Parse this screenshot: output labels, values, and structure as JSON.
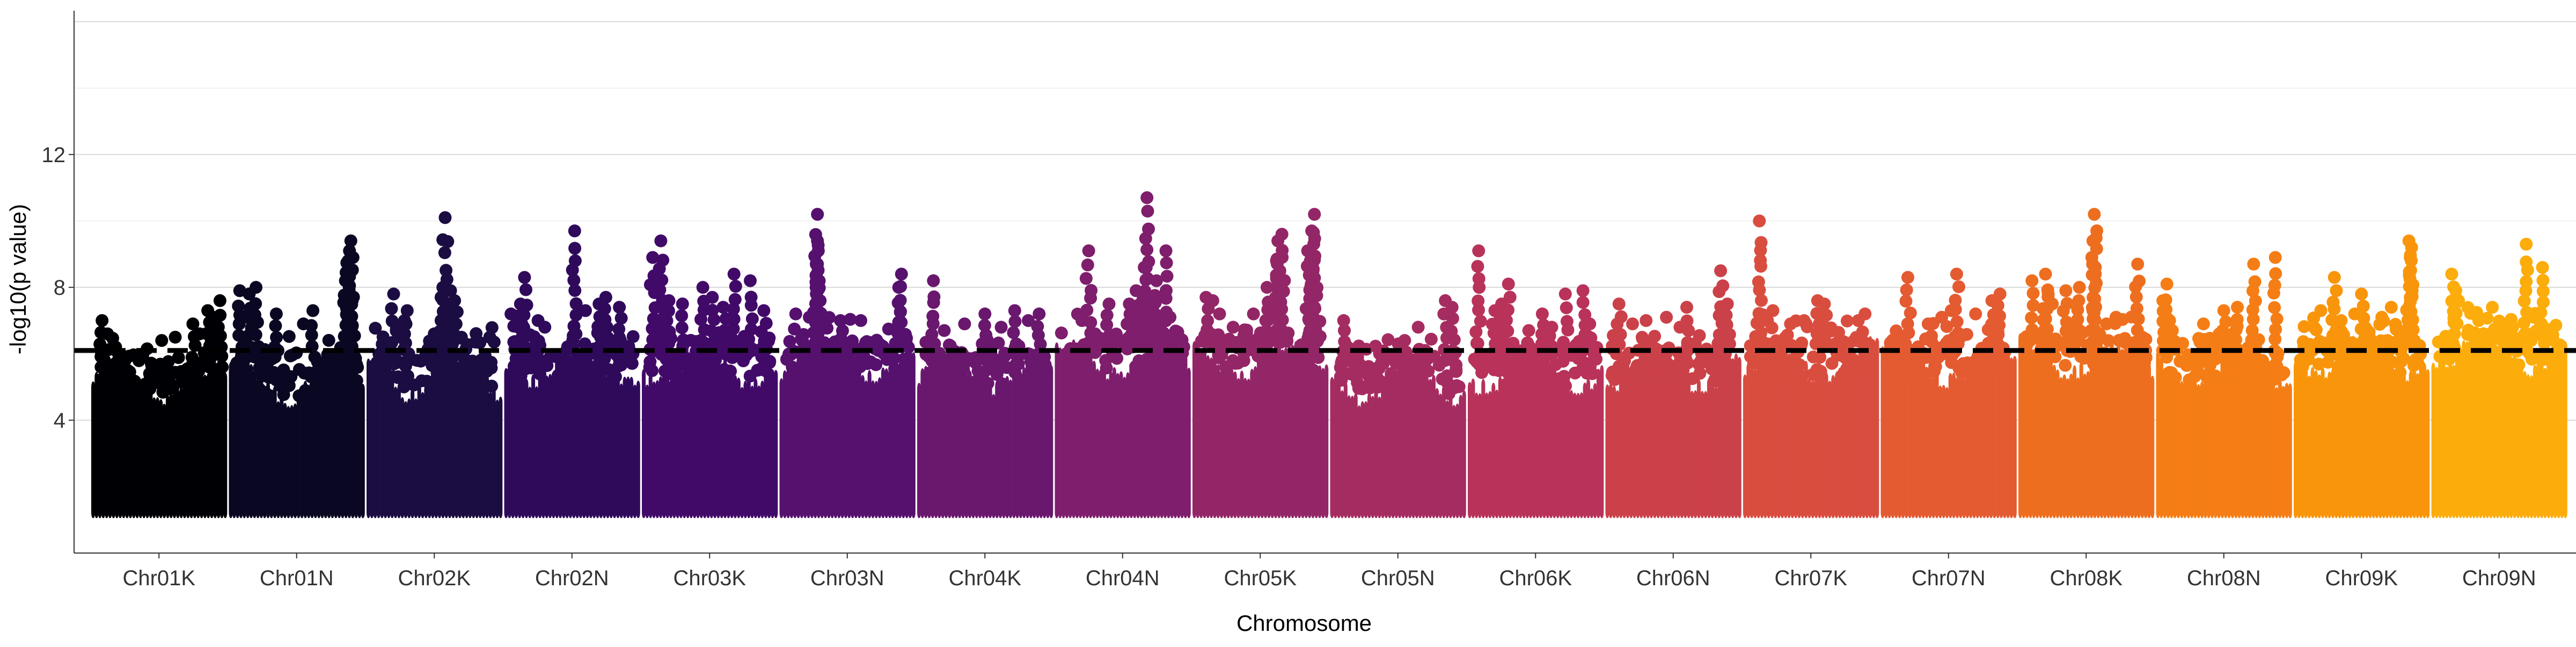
{
  "chart_data": {
    "type": "scatter",
    "subtype": "manhattan",
    "title": "",
    "xlabel": "Chromosome",
    "ylabel": "-log10(p value)",
    "ylim": [
      0,
      16.2
    ],
    "yticks": [
      4,
      8,
      12
    ],
    "grid": "horizontal major gridlines",
    "legend": "none",
    "threshold": {
      "value": 6.1,
      "style": "black dashed line"
    },
    "categories": [
      "Chr01K",
      "Chr01N",
      "Chr02K",
      "Chr02N",
      "Chr03K",
      "Chr03N",
      "Chr04K",
      "Chr04N",
      "Chr05K",
      "Chr05N",
      "Chr06K",
      "Chr06N",
      "Chr07K",
      "Chr07N",
      "Chr08K",
      "Chr08N",
      "Chr09K",
      "Chr09N"
    ],
    "colors": [
      "#000004",
      "#0a0722",
      "#1b0c41",
      "#2f0a5b",
      "#420a68",
      "#56106e",
      "#6a176e",
      "#7e1e6c",
      "#932667",
      "#a52c60",
      "#b8325a",
      "#cb4149",
      "#d94d3f",
      "#e45a31",
      "#ee6e1f",
      "#f57d15",
      "#f9950a",
      "#fcac0b"
    ],
    "series": [
      {
        "name": "Chr01K",
        "band_top": [
          4.7,
          5.6
        ],
        "peaks": [
          [
            0.08,
            7.0
          ],
          [
            0.12,
            6.6
          ],
          [
            0.18,
            6.2
          ],
          [
            0.25,
            5.8
          ],
          [
            0.52,
            6.4
          ],
          [
            0.62,
            6.5
          ],
          [
            0.75,
            6.9
          ],
          [
            0.8,
            6.6
          ],
          [
            0.86,
            7.3
          ],
          [
            0.9,
            7.1
          ],
          [
            0.95,
            7.6
          ]
        ]
      },
      {
        "name": "Chr01N",
        "band_top": [
          4.6,
          5.9
        ],
        "peaks": [
          [
            0.08,
            7.9
          ],
          [
            0.15,
            7.8
          ],
          [
            0.2,
            8.0
          ],
          [
            0.35,
            7.2
          ],
          [
            0.55,
            6.9
          ],
          [
            0.62,
            7.3
          ],
          [
            0.88,
            8.8
          ],
          [
            0.89,
            9.1
          ],
          [
            0.9,
            9.4
          ],
          [
            0.86,
            8.2
          ],
          [
            0.91,
            7.6
          ]
        ]
      },
      {
        "name": "Chr02K",
        "band_top": [
          4.8,
          6.0
        ],
        "peaks": [
          [
            0.2,
            7.8
          ],
          [
            0.28,
            7.0
          ],
          [
            0.3,
            7.3
          ],
          [
            0.5,
            6.6
          ],
          [
            0.55,
            7.0
          ],
          [
            0.55,
            7.7
          ],
          [
            0.58,
            10.1
          ],
          [
            0.62,
            7.9
          ],
          [
            0.65,
            7.6
          ],
          [
            0.7,
            6.5
          ]
        ]
      },
      {
        "name": "Chr02N",
        "band_top": [
          5.2,
          6.2
        ],
        "peaks": [
          [
            0.05,
            7.2
          ],
          [
            0.12,
            7.5
          ],
          [
            0.15,
            8.3
          ],
          [
            0.25,
            7.0
          ],
          [
            0.3,
            6.8
          ],
          [
            0.52,
            9.7
          ],
          [
            0.6,
            7.3
          ],
          [
            0.7,
            7.5
          ],
          [
            0.75,
            7.7
          ],
          [
            0.85,
            7.4
          ]
        ]
      },
      {
        "name": "Chr03K",
        "band_top": [
          5.2,
          6.1
        ],
        "peaks": [
          [
            0.08,
            8.9
          ],
          [
            0.14,
            9.4
          ],
          [
            0.2,
            7.6
          ],
          [
            0.3,
            7.5
          ],
          [
            0.45,
            8.0
          ],
          [
            0.52,
            7.7
          ],
          [
            0.6,
            7.4
          ],
          [
            0.68,
            8.4
          ],
          [
            0.8,
            8.2
          ],
          [
            0.9,
            7.3
          ]
        ]
      },
      {
        "name": "Chr03N",
        "band_top": [
          5.4,
          6.3
        ],
        "peaks": [
          [
            0.12,
            7.2
          ],
          [
            0.22,
            7.1
          ],
          [
            0.28,
            9.4
          ],
          [
            0.28,
            10.2
          ],
          [
            0.28,
            8.7
          ],
          [
            0.27,
            8.0
          ],
          [
            0.3,
            7.6
          ],
          [
            0.45,
            7.0
          ],
          [
            0.6,
            7.0
          ],
          [
            0.9,
            8.4
          ],
          [
            0.88,
            8.0
          ]
        ]
      },
      {
        "name": "Chr04K",
        "band_top": [
          5.0,
          6.0
        ],
        "peaks": [
          [
            0.12,
            8.2
          ],
          [
            0.2,
            6.7
          ],
          [
            0.35,
            6.9
          ],
          [
            0.5,
            7.2
          ],
          [
            0.62,
            6.8
          ],
          [
            0.72,
            7.3
          ],
          [
            0.82,
            7.0
          ],
          [
            0.9,
            7.2
          ]
        ]
      },
      {
        "name": "Chr04N",
        "band_top": [
          5.4,
          6.3
        ],
        "peaks": [
          [
            0.2,
            7.0
          ],
          [
            0.25,
            9.1
          ],
          [
            0.4,
            7.5
          ],
          [
            0.55,
            7.5
          ],
          [
            0.6,
            7.9
          ],
          [
            0.66,
            8.6
          ],
          [
            0.68,
            10.7
          ],
          [
            0.72,
            7.6
          ],
          [
            0.75,
            8.2
          ],
          [
            0.82,
            9.1
          ],
          [
            0.85,
            7.1
          ]
        ]
      },
      {
        "name": "Chr05K",
        "band_top": [
          5.4,
          6.4
        ],
        "peaks": [
          [
            0.1,
            7.7
          ],
          [
            0.15,
            7.6
          ],
          [
            0.2,
            7.2
          ],
          [
            0.3,
            6.8
          ],
          [
            0.45,
            7.2
          ],
          [
            0.55,
            8.0
          ],
          [
            0.62,
            8.8
          ],
          [
            0.63,
            9.4
          ],
          [
            0.66,
            9.6
          ],
          [
            0.85,
            9.1
          ],
          [
            0.88,
            9.7
          ],
          [
            0.9,
            10.2
          ],
          [
            0.87,
            8.8
          ],
          [
            0.89,
            8.5
          ]
        ]
      },
      {
        "name": "Chr05N",
        "band_top": [
          4.6,
          5.8
        ],
        "peaks": [
          [
            0.1,
            7.0
          ],
          [
            0.4,
            5.8
          ],
          [
            0.55,
            6.4
          ],
          [
            0.65,
            6.8
          ],
          [
            0.7,
            6.1
          ],
          [
            0.85,
            7.6
          ],
          [
            0.9,
            7.4
          ]
        ]
      },
      {
        "name": "Chr06K",
        "band_top": [
          5.0,
          6.0
        ],
        "peaks": [
          [
            0.08,
            9.1
          ],
          [
            0.2,
            7.3
          ],
          [
            0.25,
            7.5
          ],
          [
            0.3,
            8.1
          ],
          [
            0.45,
            6.7
          ],
          [
            0.55,
            7.2
          ],
          [
            0.62,
            6.8
          ],
          [
            0.72,
            7.8
          ],
          [
            0.85,
            7.9
          ],
          [
            0.9,
            6.9
          ]
        ]
      },
      {
        "name": "Chr06N",
        "band_top": [
          5.0,
          6.0
        ],
        "peaks": [
          [
            0.1,
            7.5
          ],
          [
            0.2,
            6.9
          ],
          [
            0.3,
            7.0
          ],
          [
            0.45,
            7.1
          ],
          [
            0.55,
            6.8
          ],
          [
            0.6,
            7.4
          ],
          [
            0.85,
            8.5
          ],
          [
            0.9,
            7.5
          ]
        ]
      },
      {
        "name": "Chr07K",
        "band_top": [
          5.2,
          6.3
        ],
        "peaks": [
          [
            0.12,
            10.0
          ],
          [
            0.18,
            7.0
          ],
          [
            0.22,
            7.3
          ],
          [
            0.35,
            6.9
          ],
          [
            0.45,
            7.0
          ],
          [
            0.55,
            7.6
          ],
          [
            0.6,
            7.5
          ],
          [
            0.85,
            7.0
          ],
          [
            0.9,
            7.2
          ]
        ]
      },
      {
        "name": "Chr07N",
        "band_top": [
          5.2,
          6.3
        ],
        "peaks": [
          [
            0.12,
            6.6
          ],
          [
            0.2,
            8.3
          ],
          [
            0.35,
            6.9
          ],
          [
            0.45,
            7.1
          ],
          [
            0.52,
            7.3
          ],
          [
            0.56,
            8.4
          ],
          [
            0.7,
            7.2
          ],
          [
            0.82,
            7.6
          ],
          [
            0.88,
            7.8
          ]
        ]
      },
      {
        "name": "Chr08K",
        "band_top": [
          5.4,
          6.4
        ],
        "peaks": [
          [
            0.1,
            8.2
          ],
          [
            0.2,
            8.4
          ],
          [
            0.22,
            7.8
          ],
          [
            0.25,
            7.5
          ],
          [
            0.35,
            7.9
          ],
          [
            0.45,
            8.0
          ],
          [
            0.55,
            7.3
          ],
          [
            0.55,
            9.4
          ],
          [
            0.56,
            10.2
          ],
          [
            0.65,
            6.9
          ],
          [
            0.72,
            7.1
          ],
          [
            0.88,
            8.7
          ]
        ]
      },
      {
        "name": "Chr08N",
        "band_top": [
          5.0,
          6.1
        ],
        "peaks": [
          [
            0.05,
            7.6
          ],
          [
            0.08,
            8.1
          ],
          [
            0.1,
            7.0
          ],
          [
            0.12,
            6.7
          ],
          [
            0.35,
            6.9
          ],
          [
            0.5,
            7.3
          ],
          [
            0.6,
            7.4
          ],
          [
            0.72,
            8.7
          ],
          [
            0.88,
            8.9
          ]
        ]
      },
      {
        "name": "Chr09K",
        "band_top": [
          5.4,
          6.4
        ],
        "peaks": [
          [
            0.2,
            7.3
          ],
          [
            0.3,
            8.3
          ],
          [
            0.35,
            7.0
          ],
          [
            0.45,
            7.2
          ],
          [
            0.5,
            7.8
          ],
          [
            0.65,
            7.1
          ],
          [
            0.72,
            7.4
          ],
          [
            0.85,
            9.4
          ],
          [
            0.86,
            8.9
          ],
          [
            0.87,
            9.2
          ]
        ]
      },
      {
        "name": "Chr09N",
        "band_top": [
          5.6,
          6.6
        ],
        "peaks": [
          [
            0.15,
            8.4
          ],
          [
            0.18,
            7.9
          ],
          [
            0.2,
            7.6
          ],
          [
            0.17,
            7.2
          ],
          [
            0.35,
            7.0
          ],
          [
            0.45,
            7.4
          ],
          [
            0.7,
            9.3
          ],
          [
            0.82,
            8.6
          ],
          [
            0.6,
            6.8
          ]
        ]
      }
    ]
  }
}
